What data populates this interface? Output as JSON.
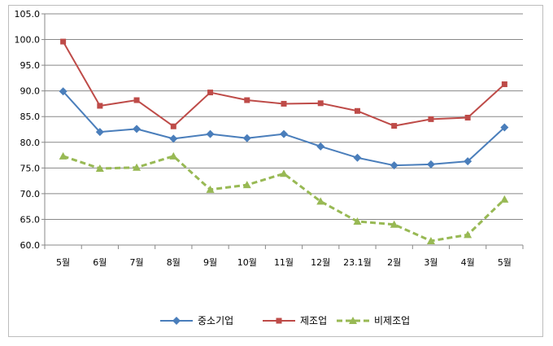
{
  "chart_data": {
    "type": "line",
    "categories": [
      "5월",
      "6월",
      "7월",
      "8월",
      "9월",
      "10월",
      "11월",
      "12월",
      "23.1월",
      "2월",
      "3월",
      "4월",
      "5월"
    ],
    "ylim": [
      60.0,
      105.0
    ],
    "yticks": [
      "60.0",
      "65.0",
      "70.0",
      "75.0",
      "80.0",
      "85.0",
      "90.0",
      "95.0",
      "100.0",
      "105.0"
    ],
    "grid": true,
    "legend_position": "bottom",
    "series": [
      {
        "name": "중소기업",
        "color": "#4a7ebb",
        "marker": "diamond",
        "dash": "solid",
        "values": [
          89.9,
          82.0,
          82.6,
          80.7,
          81.6,
          80.8,
          81.6,
          79.2,
          77.0,
          75.5,
          75.7,
          76.3,
          82.9
        ]
      },
      {
        "name": "제조업",
        "color": "#be4b48",
        "marker": "square",
        "dash": "solid",
        "values": [
          99.6,
          87.1,
          88.2,
          83.1,
          89.7,
          88.2,
          87.5,
          87.6,
          86.1,
          83.2,
          84.5,
          84.8,
          91.3
        ]
      },
      {
        "name": "비제조업",
        "color": "#98b954",
        "marker": "triangle",
        "dash": "dashed",
        "values": [
          77.3,
          74.9,
          75.1,
          77.3,
          70.8,
          71.7,
          73.9,
          68.5,
          64.6,
          64.0,
          60.8,
          62.0,
          68.9
        ]
      }
    ]
  }
}
